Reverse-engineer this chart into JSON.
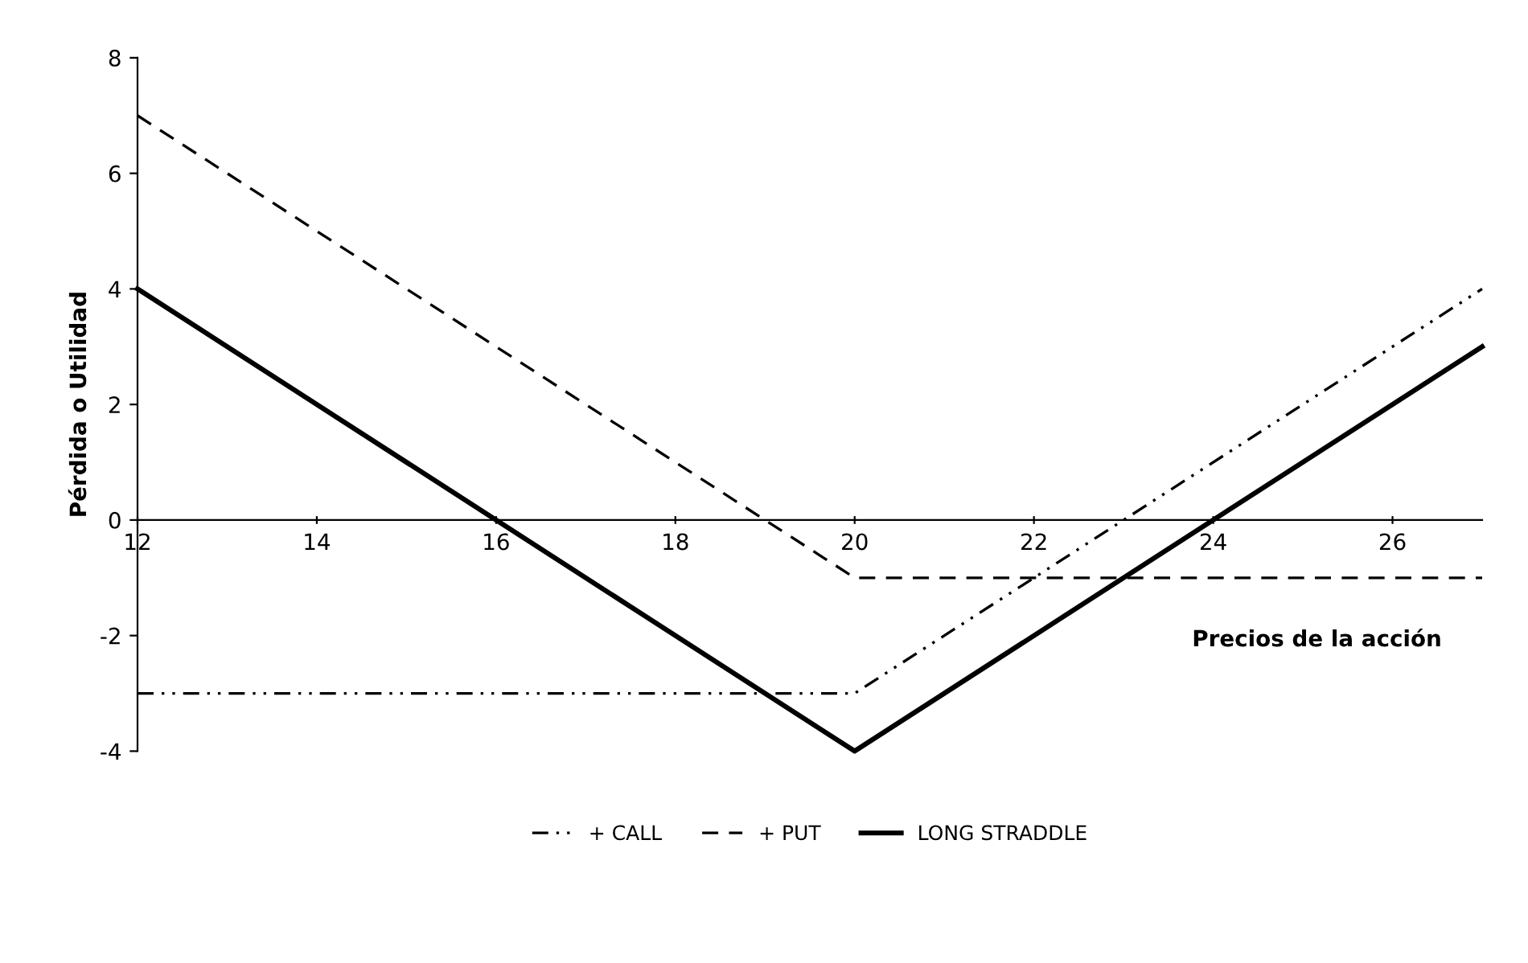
{
  "chart_data": {
    "type": "line",
    "xlabel": "Precios de la acción",
    "ylabel": "Pérdida o Utilidad",
    "xlim": [
      12,
      27
    ],
    "ylim": [
      -4,
      8
    ],
    "xticks": [
      12,
      14,
      16,
      18,
      20,
      22,
      24,
      26
    ],
    "yticks": [
      -4,
      -2,
      0,
      2,
      4,
      6,
      8
    ],
    "grid": false,
    "legend": "bottom",
    "marker": "none",
    "series": [
      {
        "name": "+ CALL",
        "color": "#000000",
        "line_style": "dashdot",
        "x": [
          12,
          20,
          27
        ],
        "values": [
          -3,
          -3,
          4
        ]
      },
      {
        "name": "+ PUT",
        "color": "#000000",
        "line_style": "dashed",
        "x": [
          12,
          20,
          27
        ],
        "values": [
          7,
          -1,
          -1
        ]
      },
      {
        "name": "LONG STRADDLE",
        "color": "#000000",
        "line_style": "solid",
        "x": [
          12,
          20,
          27
        ],
        "values": [
          4,
          -4,
          3
        ]
      }
    ]
  }
}
